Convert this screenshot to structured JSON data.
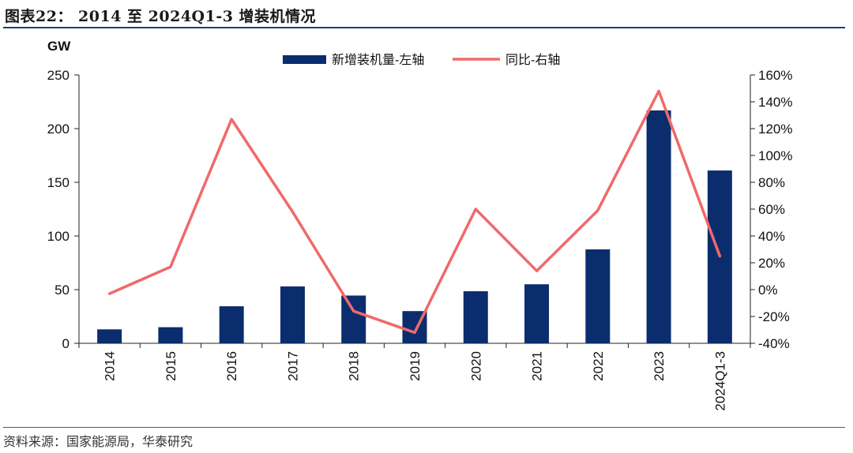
{
  "title": "图表22： 2014 至 2024Q1-3 增装机情况",
  "source": "资料来源：国家能源局，华泰研究",
  "colors": {
    "bar": "#0b2d6e",
    "line": "#f0696a",
    "rule": "#1f3c88"
  },
  "chart_data": {
    "type": "bar",
    "categories": [
      "2014",
      "2015",
      "2016",
      "2017",
      "2018",
      "2019",
      "2020",
      "2021",
      "2022",
      "2023",
      "2024Q1-3"
    ],
    "series": [
      {
        "name": "新增装机量-左轴",
        "type": "bar",
        "axis": "left",
        "values": [
          13,
          15,
          34.5,
          53,
          44.5,
          30,
          48.5,
          55,
          87.5,
          217,
          161
        ]
      },
      {
        "name": "同比-右轴",
        "type": "line",
        "axis": "right",
        "values": [
          -3,
          17,
          127,
          58,
          -16,
          -32,
          60,
          14,
          59,
          148,
          25
        ]
      }
    ],
    "left_axis": {
      "label": "GW",
      "min": 0,
      "max": 250,
      "ticks": [
        0,
        50,
        100,
        150,
        200,
        250
      ]
    },
    "right_axis": {
      "min": -40,
      "max": 160,
      "ticks": [
        "-40%",
        "-20%",
        "0%",
        "20%",
        "40%",
        "60%",
        "80%",
        "100%",
        "120%",
        "140%",
        "160%"
      ]
    },
    "legend_position": "top-center",
    "grid": false
  }
}
